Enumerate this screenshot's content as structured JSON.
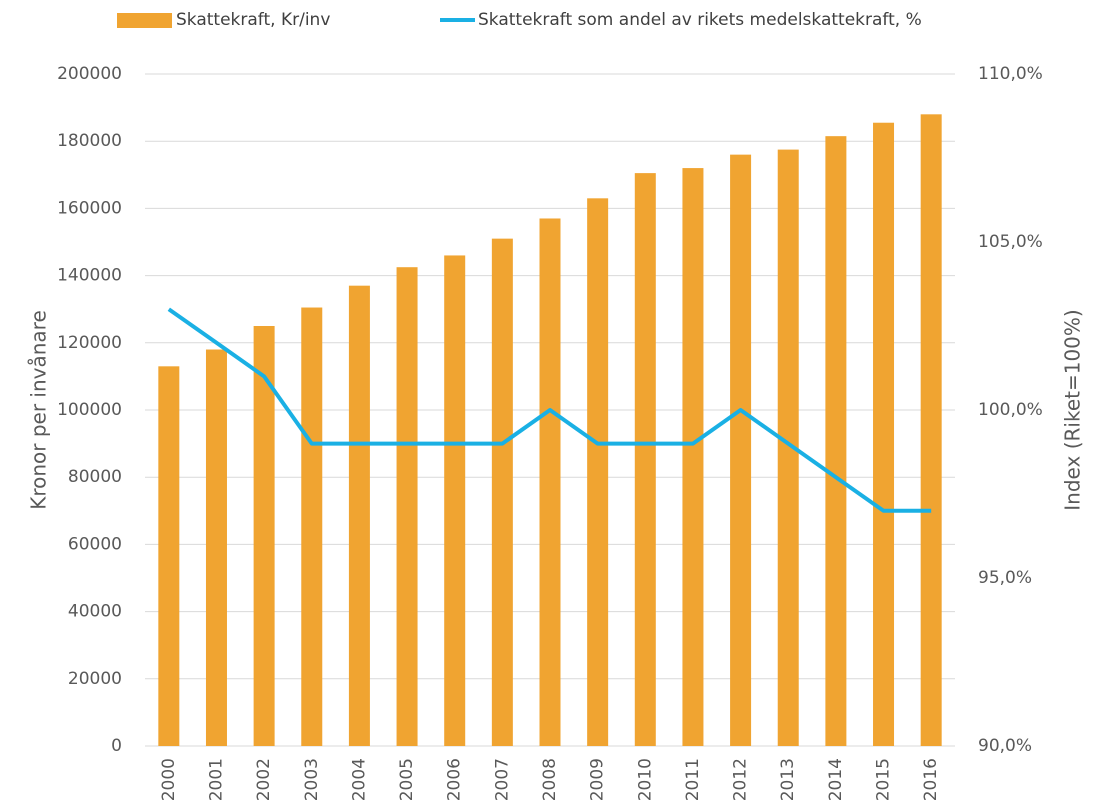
{
  "chart_data": {
    "type": "bar_line",
    "categories": [
      "2000",
      "2001",
      "2002",
      "2003",
      "2004",
      "2005",
      "2006",
      "2007",
      "2008",
      "2009",
      "2010",
      "2011",
      "2012",
      "2013",
      "2014",
      "2015",
      "2016"
    ],
    "series": [
      {
        "name": "Skattekraft, Kr/inv",
        "color": "#f0a431",
        "type": "bar",
        "values": [
          113000,
          118000,
          125000,
          130500,
          137000,
          142500,
          146000,
          151000,
          157000,
          163000,
          170500,
          172000,
          176000,
          177500,
          181500,
          185500,
          188000
        ]
      },
      {
        "name": "Skattekraft som andel av rikets medelskattekraft, %",
        "color": "#1ab0e4",
        "type": "line",
        "axis": "y2",
        "values": [
          103,
          102,
          101,
          99,
          99,
          99,
          99,
          99,
          100,
          99,
          99,
          99,
          100,
          99,
          98,
          97,
          97
        ]
      }
    ],
    "ylabel": "Kronor per invånare",
    "y2label": "Index (Riket=100%)",
    "ylim": [
      0,
      200000
    ],
    "yticks": [
      0,
      20000,
      40000,
      60000,
      80000,
      100000,
      120000,
      140000,
      160000,
      180000,
      200000
    ],
    "y2lim": [
      90,
      110
    ],
    "y2ticks": [
      {
        "value": 90,
        "label": "90,0%"
      },
      {
        "value": 95,
        "label": "95,0%"
      },
      {
        "value": 100,
        "label": "100,0%"
      },
      {
        "value": 105,
        "label": "105,0%"
      },
      {
        "value": 110,
        "label": "110,0%"
      }
    ],
    "grid": true,
    "legend": "top"
  }
}
